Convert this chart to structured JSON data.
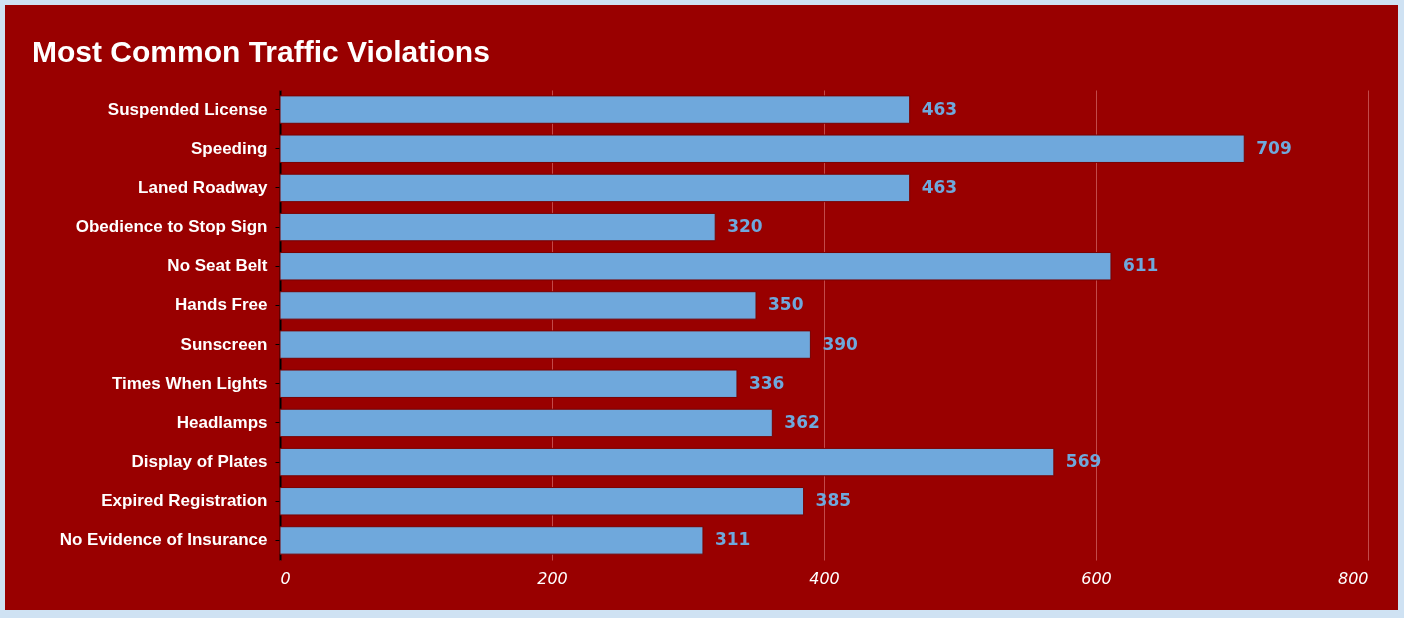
{
  "chart_data": {
    "type": "bar",
    "orientation": "horizontal",
    "title": "Most Common Traffic Violations",
    "categories": [
      "Suspended License",
      "Speeding",
      "Laned Roadway",
      "Obedience to Stop Sign",
      "No Seat Belt",
      "Hands Free",
      "Sunscreen",
      "Times When Lights",
      "Headlamps",
      "Display of Plates",
      "Expired Registration",
      "No Evidence of Insurance"
    ],
    "values": [
      463,
      709,
      463,
      320,
      611,
      350,
      390,
      336,
      362,
      569,
      385,
      311
    ],
    "color": "#6fa8dc",
    "xlim": [
      0,
      800
    ],
    "xticks": [
      0,
      200,
      400,
      600,
      800
    ],
    "grid": "x",
    "data_labels": true
  }
}
